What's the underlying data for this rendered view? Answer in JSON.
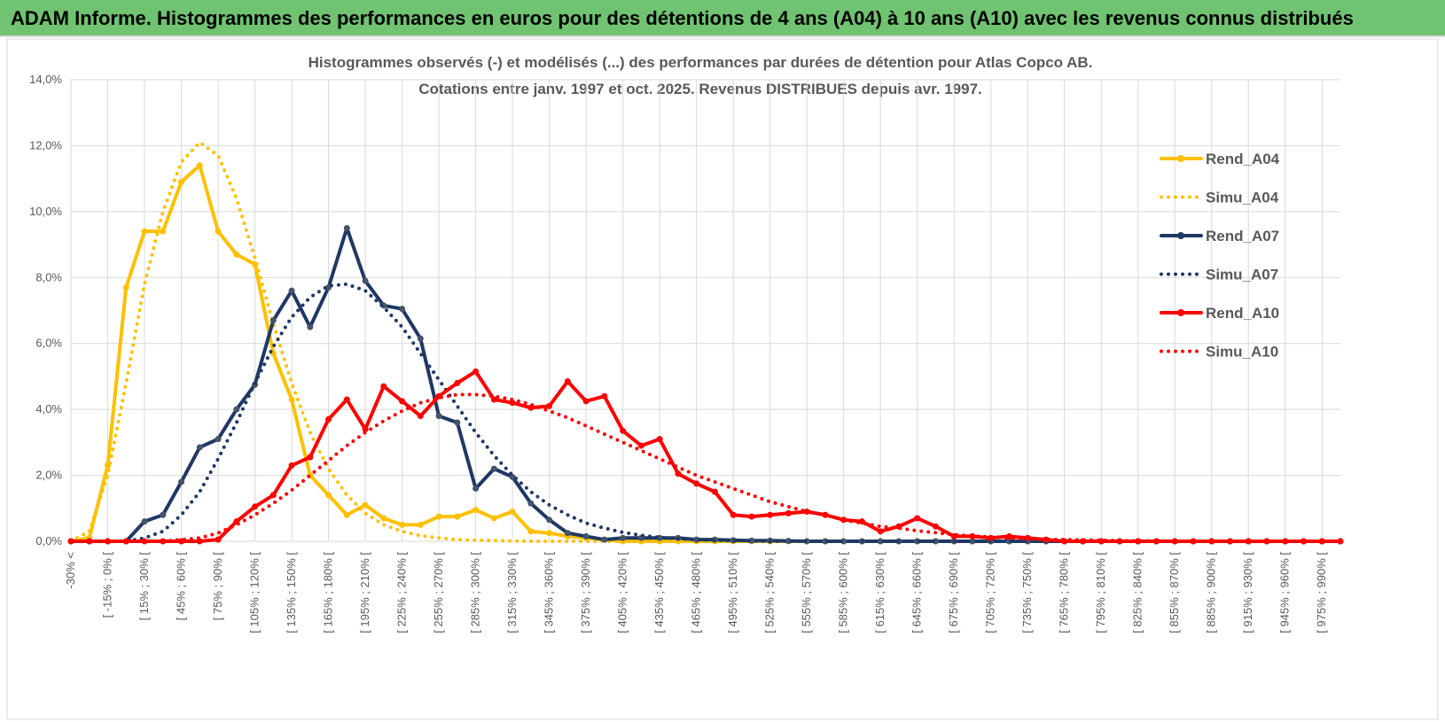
{
  "header": {
    "title": "ADAM Informe. Histogrammes des performances en euros pour des détentions de 4 ans (A04) à 10 ans (A10) avec les revenus connus distribués"
  },
  "chart_data": {
    "type": "line",
    "title": "Histogrammes observés (-) et modélisés (...) des performances par durées de détention pour Atlas Copco AB.",
    "subtitle": "Cotations entre janv. 1997 et oct. 2025. Revenus DISTRIBUES depuis avr. 1997.",
    "categories": [
      "-30% <",
      null,
      "[ -15% ; 0% [",
      null,
      "[ 15% ; 30% [",
      null,
      "[ 45% ; 60% [",
      null,
      "[ 75% ; 90% [",
      null,
      "[ 105% ; 120% [",
      null,
      "[ 135% ; 150% [",
      null,
      "[ 165% ; 180% [",
      null,
      "[ 195% ; 210% [",
      null,
      "[ 225% ; 240% [",
      null,
      "[ 255% ; 270% [",
      null,
      "[ 285% ; 300% [",
      null,
      "[ 315% ; 330% [",
      null,
      "[ 345% ; 360% [",
      null,
      "[ 375% ; 390% [",
      null,
      "[ 405% ; 420% [",
      null,
      "[ 435% ; 450% [",
      null,
      "[ 465% ; 480% [",
      null,
      "[ 495% ; 510% [",
      null,
      "[ 525% ; 540% [",
      null,
      "[ 555% ; 570% [",
      null,
      "[ 585% ; 600% [",
      null,
      "[ 615% ; 630% [",
      null,
      "[ 645% ; 660% [",
      null,
      "[ 675% ; 690% [",
      null,
      "[ 705% ; 720% [",
      null,
      "[ 735% ; 750% [",
      null,
      "[ 765% ; 780% [",
      null,
      "[ 795% ; 810% [",
      null,
      "[ 825% ; 840% [",
      null,
      "[ 855% ; 870% [",
      null,
      "[ 885% ; 900% [",
      null,
      "[ 915% ; 930% [",
      null,
      "[ 945% ; 960% [",
      null,
      "[ 975% ; 990% [",
      null
    ],
    "ylim": [
      0,
      14
    ],
    "yticks": [
      {
        "value": 0,
        "label": "0,0%"
      },
      {
        "value": 2,
        "label": "2,0%"
      },
      {
        "value": 4,
        "label": "4,0%"
      },
      {
        "value": 6,
        "label": "6,0%"
      },
      {
        "value": 8,
        "label": "8,0%"
      },
      {
        "value": 10,
        "label": "10,0%"
      },
      {
        "value": 12,
        "label": "12,0%"
      },
      {
        "value": 14,
        "label": "14,0%"
      }
    ],
    "grid": true,
    "legend": "right",
    "series": [
      {
        "name": "Rend_A04",
        "color": "#ffc000",
        "style": "solid",
        "markers": true,
        "values": [
          0,
          0.1,
          2.3,
          7.7,
          9.4,
          9.4,
          10.9,
          11.4,
          9.4,
          8.7,
          8.4,
          5.7,
          4.3,
          2.0,
          1.4,
          0.8,
          1.1,
          0.7,
          0.5,
          0.5,
          0.75,
          0.75,
          0.95,
          0.7,
          0.9,
          0.3,
          0.25,
          0.15,
          0.1,
          0.05,
          0,
          0,
          0,
          0,
          0,
          0,
          0,
          0,
          0,
          0,
          0,
          0,
          0,
          0,
          0,
          0,
          0,
          0,
          0,
          0,
          0,
          0,
          0,
          0,
          0,
          0,
          0,
          0,
          0,
          0,
          0,
          0,
          0,
          0,
          0,
          0,
          0,
          0,
          0,
          0
        ]
      },
      {
        "name": "Simu_A04",
        "color": "#ffc000",
        "style": "dotted",
        "markers": false,
        "values": [
          0,
          0.3,
          2.0,
          4.8,
          7.8,
          10.0,
          11.5,
          12.1,
          11.7,
          10.4,
          8.6,
          6.6,
          4.8,
          3.3,
          2.2,
          1.4,
          0.85,
          0.5,
          0.3,
          0.17,
          0.1,
          0.05,
          0.03,
          0.02,
          0.01,
          0,
          0,
          0,
          0,
          0,
          0,
          0,
          0,
          0,
          0,
          0,
          0,
          0,
          0,
          0,
          0,
          0,
          0,
          0,
          0,
          0,
          0,
          0,
          0,
          0,
          0,
          0,
          0,
          0,
          0,
          0,
          0,
          0,
          0,
          0,
          0,
          0,
          0,
          0,
          0,
          0,
          0,
          0,
          0,
          0
        ]
      },
      {
        "name": "Rend_A07",
        "color": "#1f3864",
        "style": "solid",
        "markers": true,
        "values": [
          0,
          0,
          0,
          0,
          0.6,
          0.8,
          1.8,
          2.85,
          3.1,
          4.0,
          4.75,
          6.7,
          7.6,
          6.5,
          7.7,
          9.5,
          7.9,
          7.15,
          7.05,
          6.15,
          3.8,
          3.6,
          1.6,
          2.2,
          1.95,
          1.15,
          0.65,
          0.25,
          0.15,
          0.05,
          0.1,
          0.1,
          0.1,
          0.1,
          0.05,
          0.05,
          0.03,
          0.02,
          0.02,
          0.01,
          0,
          0,
          0,
          0,
          0,
          0,
          0,
          0,
          0,
          0,
          0,
          0,
          0,
          0,
          0,
          0,
          0,
          0,
          0,
          0,
          0,
          0,
          0,
          0,
          0,
          0,
          0,
          0,
          0,
          0
        ]
      },
      {
        "name": "Simu_A07",
        "color": "#1f3864",
        "style": "dotted",
        "markers": false,
        "values": [
          0,
          0,
          0,
          0,
          0.1,
          0.3,
          0.8,
          1.5,
          2.5,
          3.6,
          4.8,
          5.9,
          6.8,
          7.4,
          7.75,
          7.8,
          7.6,
          7.1,
          6.5,
          5.7,
          4.9,
          4.1,
          3.3,
          2.6,
          2.0,
          1.5,
          1.1,
          0.8,
          0.55,
          0.4,
          0.27,
          0.18,
          0.12,
          0.08,
          0.05,
          0.03,
          0.02,
          0.01,
          0,
          0,
          0,
          0,
          0,
          0,
          0,
          0,
          0,
          0,
          0,
          0,
          0,
          0,
          0,
          0,
          0,
          0,
          0,
          0,
          0,
          0,
          0,
          0,
          0,
          0,
          0,
          0,
          0,
          0,
          0,
          0
        ]
      },
      {
        "name": "Rend_A10",
        "color": "#ff0000",
        "style": "solid",
        "markers": true,
        "values": [
          0,
          0,
          0,
          0,
          0,
          0,
          0,
          0,
          0.05,
          0.6,
          1.05,
          1.4,
          2.3,
          2.55,
          3.7,
          4.3,
          3.4,
          4.7,
          4.25,
          3.8,
          4.4,
          4.8,
          5.15,
          4.3,
          4.2,
          4.05,
          4.1,
          4.85,
          4.25,
          4.4,
          3.35,
          2.9,
          3.1,
          2.05,
          1.75,
          1.5,
          0.8,
          0.75,
          0.8,
          0.85,
          0.9,
          0.8,
          0.65,
          0.6,
          0.3,
          0.45,
          0.7,
          0.45,
          0.15,
          0.15,
          0.1,
          0.15,
          0.1,
          0.05,
          0,
          0,
          0,
          0,
          0,
          0,
          0,
          0,
          0,
          0,
          0,
          0,
          0,
          0,
          0,
          0
        ]
      },
      {
        "name": "Simu_A10",
        "color": "#ff0000",
        "style": "dotted",
        "markers": false,
        "values": [
          0,
          0,
          0,
          0,
          0,
          0,
          0.05,
          0.1,
          0.25,
          0.5,
          0.8,
          1.15,
          1.55,
          2.0,
          2.45,
          2.9,
          3.3,
          3.65,
          3.95,
          4.2,
          4.35,
          4.45,
          4.45,
          4.4,
          4.3,
          4.15,
          3.95,
          3.75,
          3.5,
          3.25,
          3.0,
          2.75,
          2.5,
          2.25,
          2.0,
          1.8,
          1.6,
          1.4,
          1.2,
          1.05,
          0.9,
          0.8,
          0.65,
          0.55,
          0.45,
          0.4,
          0.32,
          0.26,
          0.2,
          0.16,
          0.13,
          0.1,
          0.08,
          0.06,
          0.05,
          0.04,
          0.03,
          0.02,
          0.01,
          0.01,
          0,
          0,
          0,
          0,
          0,
          0,
          0,
          0,
          0,
          0
        ]
      }
    ]
  }
}
